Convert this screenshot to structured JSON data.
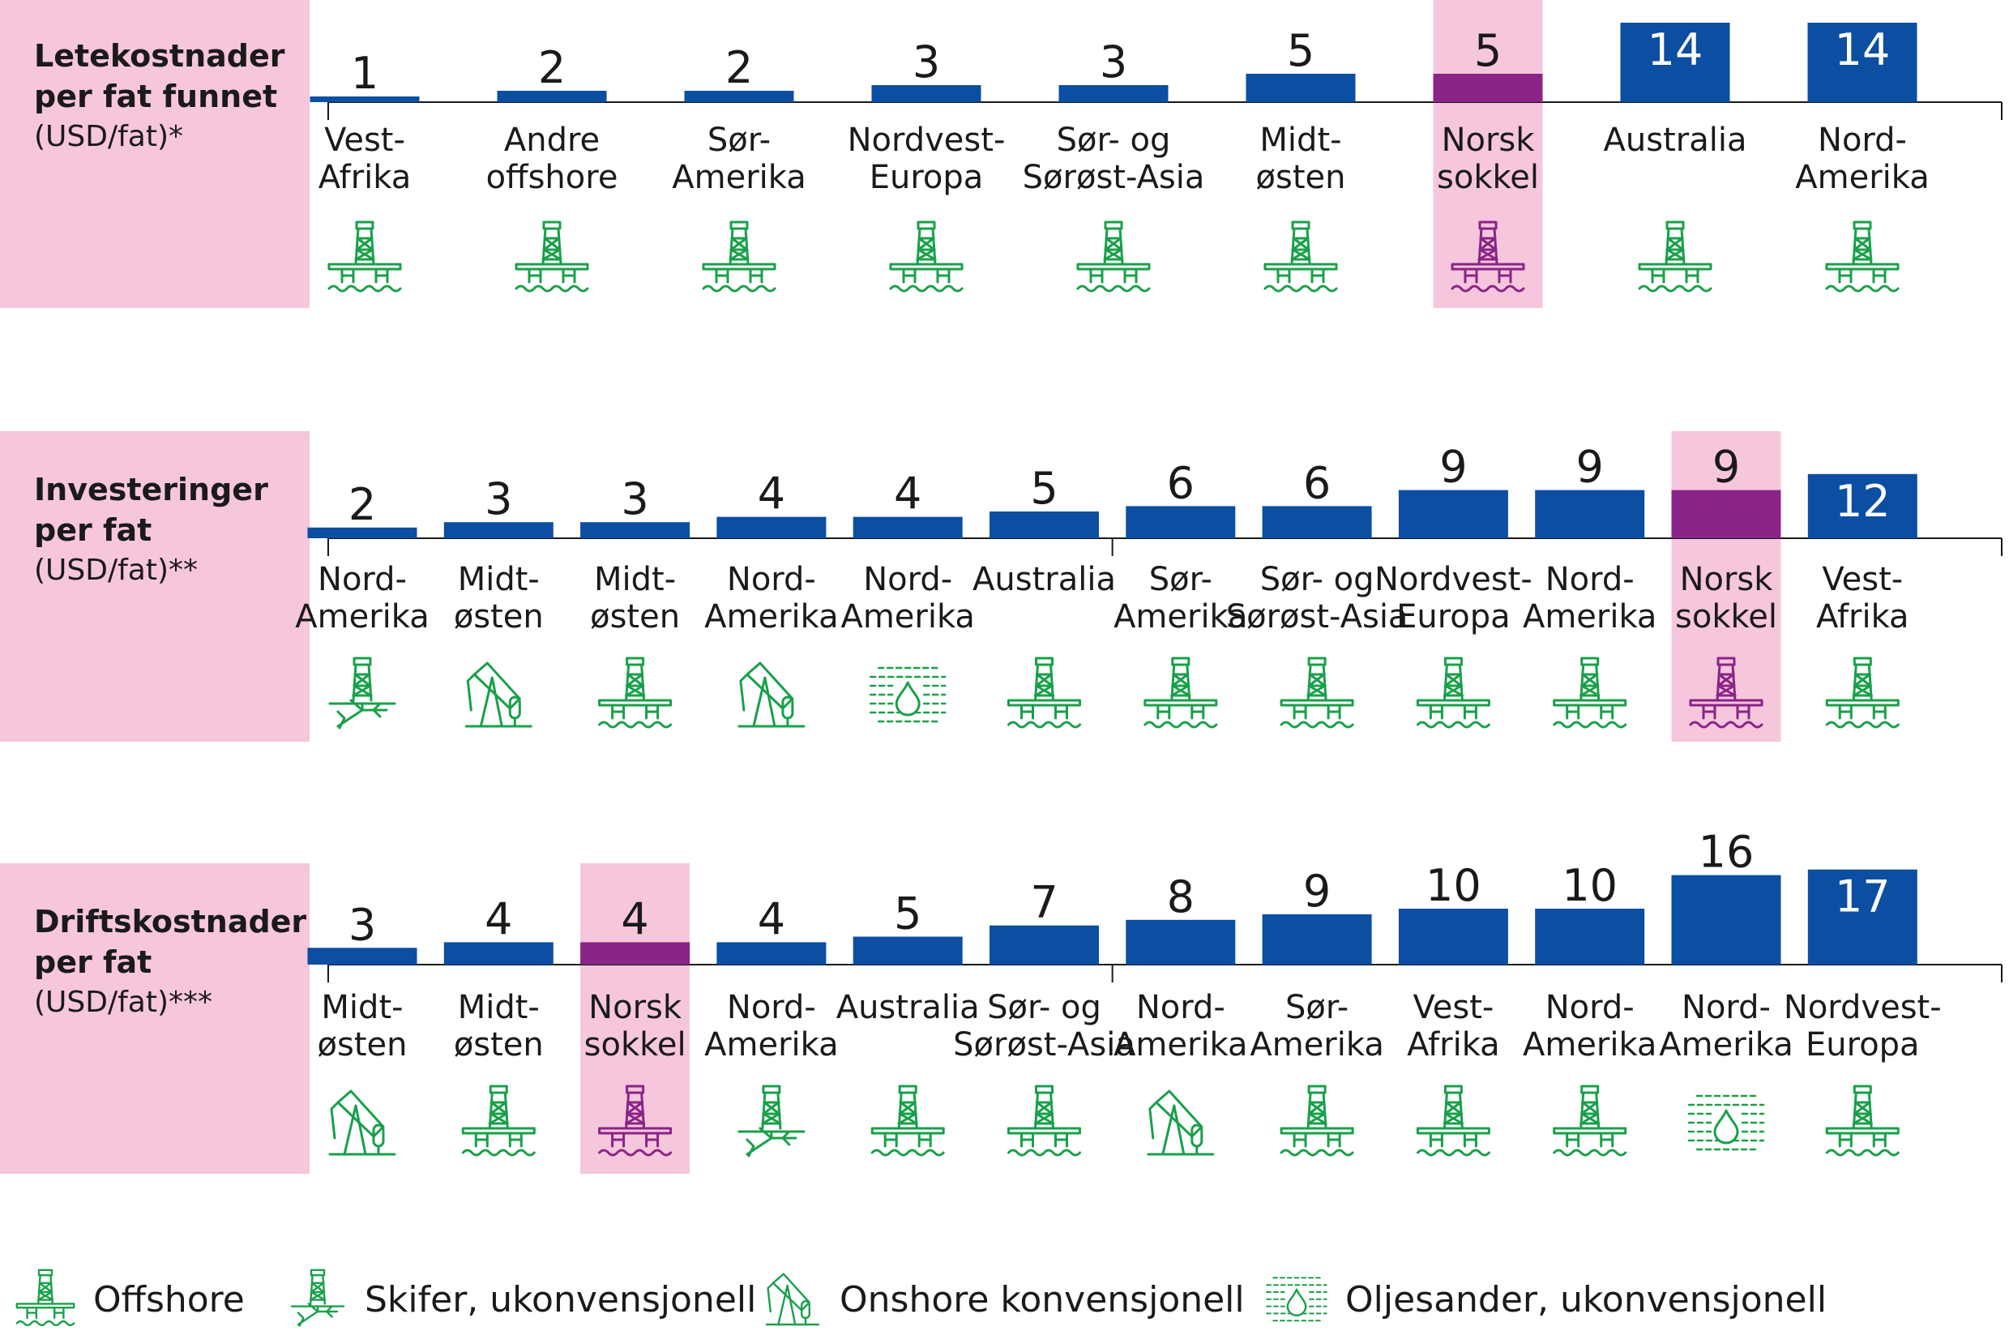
{
  "colors": {
    "bar": "#0b4ea2",
    "highlight_bar": "#8a2486",
    "highlight_bg": "#f6c6dc",
    "icon": "#19a04a",
    "icon_highlight": "#8a2486",
    "axis": "#1a1a1a"
  },
  "chart_data": [
    {
      "type": "bar",
      "title_lines": [
        "Letekostnader",
        "per fat funnet"
      ],
      "unit_label": "(USD/fat)*",
      "categories": [
        [
          "Vest-",
          "Afrika"
        ],
        [
          "Andre",
          "offshore"
        ],
        [
          "Sør-",
          "Amerika"
        ],
        [
          "Nordvest-",
          "Europa"
        ],
        [
          "Sør- og",
          "Sørøst-Asia"
        ],
        [
          "Midt-",
          "østen"
        ],
        [
          "Norsk",
          "sokkel"
        ],
        [
          "Australia"
        ],
        [
          "Nord-",
          "Amerika"
        ]
      ],
      "values": [
        1,
        2,
        2,
        3,
        3,
        5,
        5,
        14,
        14
      ],
      "types": [
        "offshore",
        "offshore",
        "offshore",
        "offshore",
        "offshore",
        "offshore",
        "offshore",
        "offshore",
        "offshore"
      ],
      "highlight_index": 6
    },
    {
      "type": "bar",
      "title_lines": [
        "Investeringer",
        "per fat"
      ],
      "unit_label": "(USD/fat)**",
      "categories": [
        [
          "Nord-",
          "Amerika"
        ],
        [
          "Midt-",
          "østen"
        ],
        [
          "Midt-",
          "østen"
        ],
        [
          "Nord-",
          "Amerika"
        ],
        [
          "Nord-",
          "Amerika"
        ],
        [
          "Australia"
        ],
        [
          "Sør-",
          "Amerika"
        ],
        [
          "Sør- og",
          "Sørøst-Asia"
        ],
        [
          "Nordvest-",
          "Europa"
        ],
        [
          "Nord-",
          "Amerika"
        ],
        [
          "Norsk",
          "sokkel"
        ],
        [
          "Vest-",
          "Afrika"
        ]
      ],
      "values": [
        2,
        3,
        3,
        4,
        4,
        5,
        6,
        6,
        9,
        9,
        9,
        12
      ],
      "types": [
        "shale",
        "onshore",
        "offshore",
        "onshore",
        "oilsands",
        "offshore",
        "offshore",
        "offshore",
        "offshore",
        "offshore",
        "offshore",
        "offshore"
      ],
      "highlight_index": 10
    },
    {
      "type": "bar",
      "title_lines": [
        "Driftskostnader",
        "per fat"
      ],
      "unit_label": "(USD/fat)***",
      "categories": [
        [
          "Midt-",
          "østen"
        ],
        [
          "Midt-",
          "østen"
        ],
        [
          "Norsk",
          "sokkel"
        ],
        [
          "Nord-",
          "Amerika"
        ],
        [
          "Australia"
        ],
        [
          "Sør- og",
          "Sørøst-Asia"
        ],
        [
          "Nord-",
          "Amerika"
        ],
        [
          "Sør-",
          "Amerika"
        ],
        [
          "Vest-",
          "Afrika"
        ],
        [
          "Nord-",
          "Amerika"
        ],
        [
          "Nord-",
          "Amerika"
        ],
        [
          "Nordvest-",
          "Europa"
        ]
      ],
      "values": [
        3,
        4,
        4,
        4,
        5,
        7,
        8,
        9,
        10,
        10,
        16,
        17
      ],
      "types": [
        "onshore",
        "offshore",
        "offshore",
        "shale",
        "offshore",
        "offshore",
        "onshore",
        "offshore",
        "offshore",
        "offshore",
        "oilsands",
        "offshore"
      ],
      "highlight_index": 2
    }
  ],
  "legend": [
    {
      "icon": "offshore-icon",
      "type": "offshore",
      "label": "Offshore"
    },
    {
      "icon": "shale-icon",
      "type": "shale",
      "label": "Skifer, ukonvensjonell"
    },
    {
      "icon": "onshore-icon",
      "type": "onshore",
      "label": "Onshore konvensjonell"
    },
    {
      "icon": "oilsands-icon",
      "type": "oilsands",
      "label": "Oljesander, ukonvensjonell"
    }
  ]
}
